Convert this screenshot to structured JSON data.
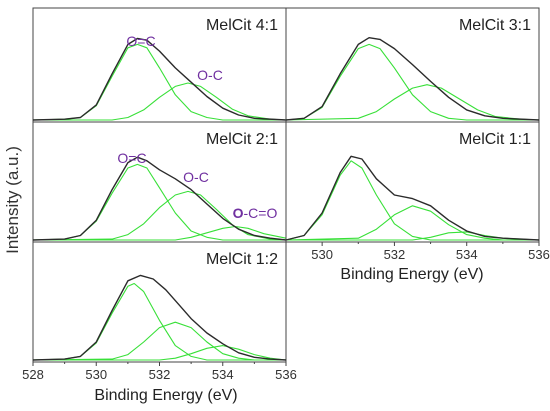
{
  "figure": {
    "ylabel": "Intensity (a.u.)",
    "colors": {
      "envelope": "#2b2b2b",
      "component": "#38e038",
      "peak_label": "#7030a0",
      "axis": "#444444"
    }
  },
  "chart_data": [
    {
      "type": "line",
      "title": "MelCit 4:1",
      "xlabel": "",
      "xlim": [
        528,
        536
      ],
      "x_ticks": [],
      "y_ticks": "none",
      "peak_labels": [
        "O=C",
        "O-C"
      ],
      "series": [
        {
          "role": "fit-envelope",
          "x": [
            528.0,
            529.0,
            529.5,
            530.0,
            530.5,
            531.0,
            531.3,
            531.6,
            532.0,
            532.5,
            533.0,
            533.5,
            534.0,
            534.5,
            535.0,
            536.0
          ],
          "y": [
            0.0,
            0.01,
            0.03,
            0.18,
            0.55,
            0.9,
            0.97,
            0.95,
            0.82,
            0.62,
            0.45,
            0.28,
            0.14,
            0.06,
            0.02,
            0.0
          ]
        },
        {
          "role": "component",
          "name": "O=C",
          "x": [
            528.0,
            529.0,
            529.5,
            530.0,
            530.5,
            531.0,
            531.3,
            531.6,
            532.0,
            532.5,
            533.0,
            533.5,
            534.0,
            536.0
          ],
          "y": [
            0.0,
            0.01,
            0.03,
            0.17,
            0.52,
            0.86,
            0.9,
            0.86,
            0.62,
            0.3,
            0.1,
            0.03,
            0.0,
            0.0
          ]
        },
        {
          "role": "component",
          "name": "O-C",
          "x": [
            528.0,
            530.5,
            531.0,
            531.5,
            532.0,
            532.5,
            532.9,
            533.3,
            533.8,
            534.3,
            534.8,
            535.5,
            536.0
          ],
          "y": [
            0.0,
            0.0,
            0.03,
            0.12,
            0.27,
            0.4,
            0.44,
            0.4,
            0.27,
            0.13,
            0.05,
            0.01,
            0.0
          ]
        }
      ]
    },
    {
      "type": "line",
      "title": "MelCit 3:1",
      "xlabel": "",
      "xlim": [
        529,
        536
      ],
      "x_ticks": [],
      "y_ticks": "none",
      "peak_labels": [],
      "series": [
        {
          "role": "fit-envelope",
          "x": [
            529.0,
            529.5,
            530.0,
            530.5,
            531.0,
            531.3,
            531.6,
            532.0,
            532.5,
            533.0,
            533.5,
            534.0,
            534.5,
            535.0,
            536.0
          ],
          "y": [
            0.0,
            0.02,
            0.16,
            0.55,
            0.9,
            0.98,
            0.96,
            0.85,
            0.66,
            0.46,
            0.27,
            0.12,
            0.05,
            0.02,
            0.0
          ]
        },
        {
          "role": "component",
          "x": [
            529.0,
            529.5,
            530.0,
            530.5,
            531.0,
            531.3,
            531.6,
            532.0,
            532.5,
            533.0,
            533.5,
            534.0,
            536.0
          ],
          "y": [
            0.0,
            0.02,
            0.15,
            0.52,
            0.85,
            0.9,
            0.85,
            0.62,
            0.3,
            0.1,
            0.02,
            0.0,
            0.0
          ]
        },
        {
          "role": "component",
          "x": [
            529.0,
            531.0,
            531.5,
            532.0,
            532.5,
            532.9,
            533.3,
            533.8,
            534.3,
            534.8,
            535.5,
            536.0
          ],
          "y": [
            0.0,
            0.02,
            0.1,
            0.25,
            0.38,
            0.42,
            0.38,
            0.25,
            0.12,
            0.04,
            0.01,
            0.0
          ]
        }
      ]
    },
    {
      "type": "line",
      "title": "MelCit 2:1",
      "xlabel": "",
      "xlim": [
        528,
        536
      ],
      "x_ticks": [],
      "y_ticks": "none",
      "peak_labels": [
        "O=C",
        "O-C",
        "O-C=O"
      ],
      "series": [
        {
          "role": "fit-envelope",
          "x": [
            528.0,
            529.0,
            529.5,
            530.0,
            530.5,
            531.0,
            531.3,
            531.6,
            532.0,
            532.5,
            533.0,
            533.5,
            534.0,
            534.5,
            535.0,
            535.5,
            536.0
          ],
          "y": [
            0.0,
            0.01,
            0.05,
            0.22,
            0.56,
            0.86,
            0.92,
            0.88,
            0.78,
            0.68,
            0.56,
            0.4,
            0.24,
            0.12,
            0.05,
            0.02,
            0.0
          ]
        },
        {
          "role": "component",
          "name": "O=C",
          "x": [
            528.0,
            529.0,
            529.5,
            530.0,
            530.5,
            531.0,
            531.3,
            531.6,
            532.0,
            532.5,
            533.0,
            533.5,
            534.0,
            536.0
          ],
          "y": [
            0.0,
            0.01,
            0.05,
            0.21,
            0.52,
            0.8,
            0.84,
            0.8,
            0.58,
            0.3,
            0.1,
            0.03,
            0.0,
            0.0
          ]
        },
        {
          "role": "component",
          "name": "O-C",
          "x": [
            528.0,
            530.5,
            531.0,
            531.5,
            532.0,
            532.5,
            532.9,
            533.3,
            533.8,
            534.3,
            534.8,
            535.5,
            536.0
          ],
          "y": [
            0.0,
            0.01,
            0.06,
            0.18,
            0.36,
            0.5,
            0.54,
            0.5,
            0.34,
            0.17,
            0.06,
            0.01,
            0.0
          ]
        },
        {
          "role": "component",
          "name": "O-C=O",
          "x": [
            528.0,
            532.5,
            533.0,
            533.5,
            534.0,
            534.4,
            534.8,
            535.3,
            536.0
          ],
          "y": [
            0.0,
            0.0,
            0.03,
            0.08,
            0.13,
            0.15,
            0.13,
            0.07,
            0.02
          ]
        }
      ]
    },
    {
      "type": "line",
      "title": "MelCit 1:1",
      "xlabel": "Binding Energy (eV)",
      "xlim": [
        529,
        536
      ],
      "x_ticks": [
        530,
        532,
        534,
        536
      ],
      "y_ticks": "none",
      "peak_labels": [],
      "series": [
        {
          "role": "fit-envelope",
          "x": [
            529.0,
            529.5,
            530.0,
            530.5,
            530.8,
            531.1,
            531.5,
            532.0,
            532.5,
            533.0,
            533.5,
            534.0,
            534.5,
            535.0,
            536.0
          ],
          "y": [
            0.0,
            0.05,
            0.3,
            0.75,
            0.93,
            0.9,
            0.68,
            0.5,
            0.46,
            0.38,
            0.22,
            0.1,
            0.04,
            0.02,
            0.0
          ]
        },
        {
          "role": "component",
          "x": [
            529.0,
            529.5,
            530.0,
            530.5,
            530.8,
            531.1,
            531.5,
            532.0,
            532.5,
            533.0,
            536.0
          ],
          "y": [
            0.0,
            0.05,
            0.28,
            0.72,
            0.88,
            0.8,
            0.5,
            0.18,
            0.04,
            0.0,
            0.0
          ]
        },
        {
          "role": "component",
          "x": [
            529.0,
            531.0,
            531.5,
            532.0,
            532.5,
            533.0,
            533.5,
            534.0,
            534.5,
            535.0,
            536.0
          ],
          "y": [
            0.0,
            0.02,
            0.12,
            0.28,
            0.38,
            0.32,
            0.17,
            0.06,
            0.02,
            0.0,
            0.0
          ]
        },
        {
          "role": "component",
          "x": [
            529.0,
            532.5,
            533.0,
            533.5,
            534.0,
            534.5,
            535.0,
            536.0
          ],
          "y": [
            0.0,
            0.0,
            0.03,
            0.08,
            0.09,
            0.05,
            0.02,
            0.0
          ]
        }
      ]
    },
    {
      "type": "line",
      "title": "MelCit 1:2",
      "xlabel": "Binding Energy (eV)",
      "xlim": [
        528,
        536
      ],
      "x_ticks": [
        528,
        530,
        532,
        534,
        536
      ],
      "y_ticks": "none",
      "peak_labels": [],
      "series": [
        {
          "role": "fit-envelope",
          "x": [
            528.0,
            529.0,
            529.5,
            530.0,
            530.5,
            531.0,
            531.4,
            531.8,
            532.2,
            532.6,
            533.0,
            533.5,
            534.0,
            534.5,
            535.0,
            535.5,
            536.0
          ],
          "y": [
            0.0,
            0.01,
            0.04,
            0.2,
            0.55,
            0.88,
            0.94,
            0.9,
            0.78,
            0.62,
            0.46,
            0.3,
            0.18,
            0.08,
            0.03,
            0.01,
            0.0
          ]
        },
        {
          "role": "component",
          "x": [
            528.0,
            529.0,
            529.5,
            530.0,
            530.5,
            531.0,
            531.2,
            531.5,
            532.0,
            532.5,
            533.0,
            533.5,
            536.0
          ],
          "y": [
            0.0,
            0.01,
            0.04,
            0.19,
            0.52,
            0.82,
            0.85,
            0.76,
            0.44,
            0.16,
            0.04,
            0.0,
            0.0
          ]
        },
        {
          "role": "component",
          "x": [
            528.0,
            530.5,
            531.0,
            531.5,
            532.0,
            532.5,
            533.0,
            533.5,
            534.0,
            534.5,
            535.0,
            536.0
          ],
          "y": [
            0.0,
            0.01,
            0.06,
            0.2,
            0.36,
            0.42,
            0.36,
            0.2,
            0.07,
            0.02,
            0.0,
            0.0
          ]
        },
        {
          "role": "component",
          "x": [
            528.0,
            532.0,
            532.5,
            533.0,
            533.5,
            534.0,
            534.5,
            535.0,
            535.5,
            536.0
          ],
          "y": [
            0.0,
            0.0,
            0.02,
            0.07,
            0.13,
            0.16,
            0.12,
            0.06,
            0.02,
            0.0
          ]
        }
      ]
    }
  ]
}
